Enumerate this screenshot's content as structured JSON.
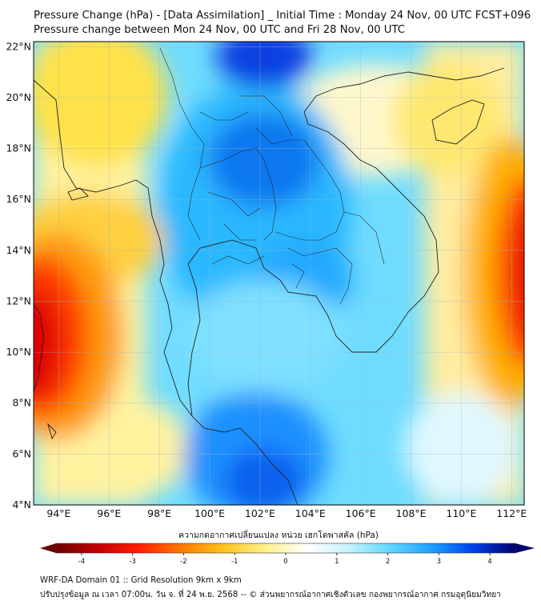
{
  "title": {
    "line1": "Pressure Change (hPa) - [Data Assimilation] _ Initial Time : Monday 24 Nov, 00 UTC FCST+096",
    "line2": "Pressure change between Mon 24 Nov, 00 UTC and Fri 28 Nov, 00 UTC"
  },
  "map": {
    "lat_labels": [
      "22°N",
      "20°N",
      "18°N",
      "16°N",
      "14°N",
      "12°N",
      "10°N",
      "8°N",
      "6°N",
      "4°N"
    ],
    "lon_labels": [
      "94°E",
      "96°E",
      "98°E",
      "100°E",
      "102°E",
      "104°E",
      "106°E",
      "108°E",
      "110°E",
      "112°E"
    ],
    "extent": {
      "lon_min": 93.0,
      "lon_max": 112.5,
      "lat_min": 4.0,
      "lat_max": 22.2
    }
  },
  "colorbar": {
    "label": "ความกดอากาศเปลี่ยนแปลง หน่วย เฮกโตพาสคัล (hPa)",
    "ticks": [
      "-4",
      "-3",
      "-2",
      "-1",
      "0",
      "1",
      "2",
      "3",
      "4"
    ],
    "range": [
      -4.5,
      4.5
    ],
    "stops": [
      "#6d0000",
      "#c40000",
      "#ff1e00",
      "#ff7a00",
      "#ffc21a",
      "#fff08a",
      "#ffffff",
      "#c6f2ff",
      "#5fd8ff",
      "#1aa0ff",
      "#0040e8",
      "#00006e"
    ]
  },
  "footer": {
    "line1": "WRF-DA Domain 01 :: Grid Resolution 9km x 9km",
    "line2": "ปรับปรุงข้อมูล ณ เวลา 07:00น. วัน จ. ที่ 24 พ.ย. 2568 -- © ส่วนพยากรณ์อากาศเชิงตัวเลข กองพยากรณ์อากาศ กรมอุตุนิยมวิทยา"
  }
}
